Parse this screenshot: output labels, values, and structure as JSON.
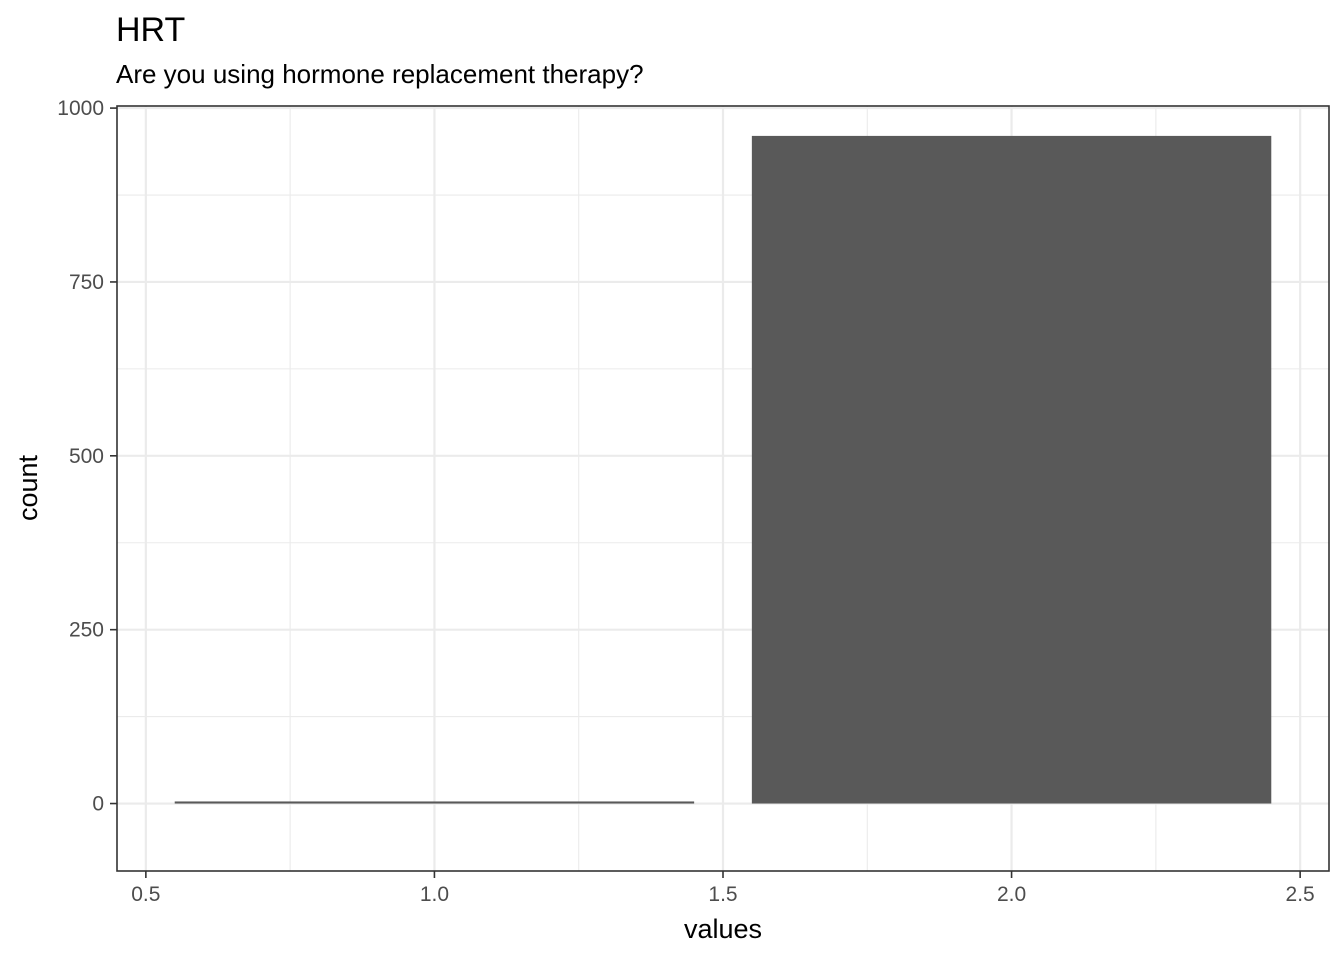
{
  "chart_data": {
    "type": "bar",
    "title": "HRT",
    "subtitle": "Are you using hormone replacement therapy?",
    "xlabel": "values",
    "ylabel": "count",
    "xlim": [
      0.45,
      2.55
    ],
    "ylim": [
      -97,
      1003
    ],
    "x_ticks": [
      0.5,
      1.0,
      1.5,
      2.0,
      2.5
    ],
    "x_tick_labels": [
      "0.5",
      "1.0",
      "1.5",
      "2.0",
      "2.5"
    ],
    "x_minor": [
      0.75,
      1.25,
      1.75,
      2.25
    ],
    "y_ticks": [
      0,
      250,
      500,
      750,
      1000
    ],
    "y_tick_labels": [
      "0",
      "250",
      "500",
      "750",
      "1000"
    ],
    "y_minor": [
      125,
      375,
      625,
      875
    ],
    "grid": true,
    "bars": [
      {
        "x": 1,
        "width": 0.9,
        "value": 3
      },
      {
        "x": 2,
        "width": 0.9,
        "value": 960
      }
    ],
    "bar_color": "#595959",
    "grid_color": "#ebebeb",
    "panel_border_color": "#333333"
  }
}
